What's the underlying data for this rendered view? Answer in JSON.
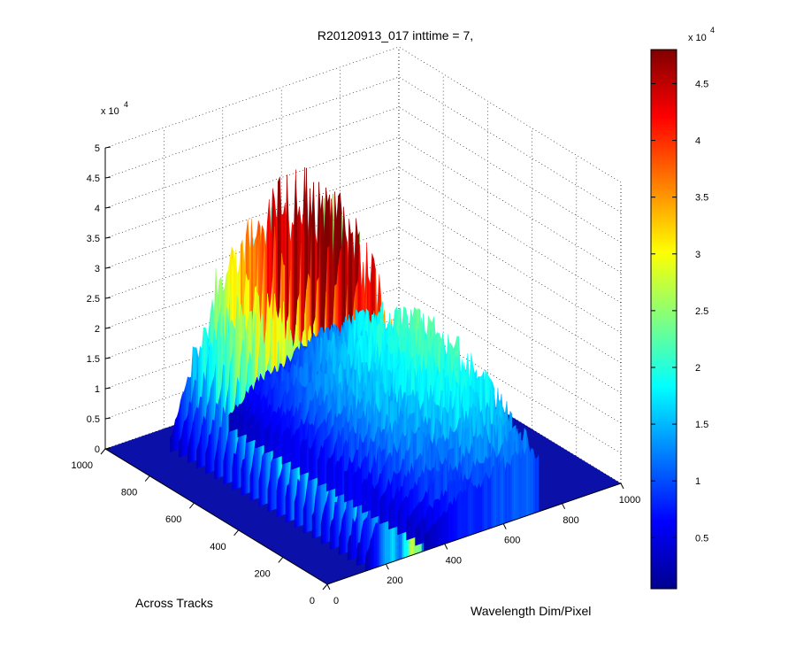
{
  "chart_data": {
    "type": "surface3d",
    "title": "R20120913_017 inttime = 7,",
    "xlabel": "Wavelength Dim/Pixel",
    "ylabel": "Across Tracks",
    "zlabel": "",
    "x_ticks": [
      "0",
      "200",
      "400",
      "600",
      "800",
      "1000"
    ],
    "y_ticks": [
      "0",
      "200",
      "400",
      "600",
      "800",
      "1000"
    ],
    "z_ticks": [
      "0",
      "0.5",
      "1",
      "1.5",
      "2",
      "2.5",
      "3",
      "3.5",
      "4",
      "4.5",
      "5"
    ],
    "z_exponent_base": "x 10",
    "z_exponent_power": "4",
    "xlim": [
      0,
      1000
    ],
    "ylim": [
      0,
      1000
    ],
    "zlim": [
      0,
      50000
    ],
    "grid": true,
    "colormap": "jet",
    "colorbar": {
      "ticks": [
        "0.5",
        "1",
        "1.5",
        "2",
        "2.5",
        "3",
        "3.5",
        "4",
        "4.5"
      ],
      "exponent_base": "x 10",
      "exponent_power": "4",
      "range": [
        500,
        48000
      ]
    },
    "bands": [
      {
        "x_range": [
          330,
          720
        ],
        "y_range": [
          0,
          880
        ],
        "peak_profile": [
          [
            330,
            5000
          ],
          [
            380,
            9000
          ],
          [
            430,
            13000
          ],
          [
            470,
            15000
          ],
          [
            510,
            14000
          ],
          [
            550,
            18000
          ],
          [
            590,
            19000
          ],
          [
            630,
            20000
          ],
          [
            670,
            21000
          ],
          [
            700,
            20000
          ],
          [
            720,
            17000
          ]
        ]
      },
      {
        "x_range": [
          130,
          330
        ],
        "y_range": [
          0,
          880
        ],
        "peak_profile": [
          [
            130,
            4000
          ],
          [
            160,
            12000
          ],
          [
            190,
            21000
          ],
          [
            215,
            30000
          ],
          [
            235,
            29000
          ],
          [
            250,
            22000
          ],
          [
            265,
            34000
          ],
          [
            285,
            47000
          ],
          [
            305,
            48000
          ],
          [
            325,
            45000
          ]
        ]
      }
    ]
  }
}
